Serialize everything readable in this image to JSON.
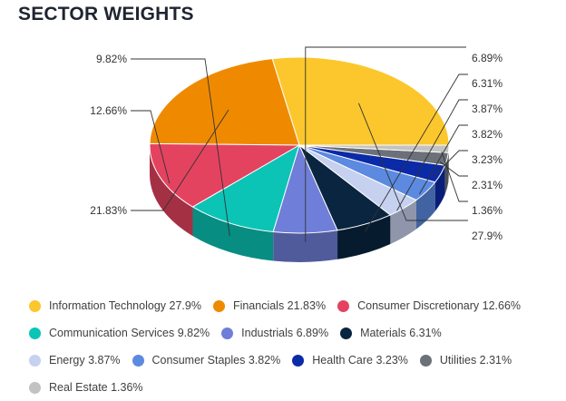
{
  "chart_data": {
    "type": "pie",
    "title": "SECTOR WEIGHTS",
    "categories": [
      "Information Technology",
      "Financials",
      "Consumer Discretionary",
      "Communication Services",
      "Industrials",
      "Materials",
      "Energy",
      "Consumer Staples",
      "Health Care",
      "Utilities",
      "Real Estate"
    ],
    "values": [
      27.9,
      21.83,
      12.66,
      9.82,
      6.89,
      6.31,
      3.87,
      3.82,
      3.23,
      2.31,
      1.36
    ],
    "value_labels": [
      "27.9%",
      "21.83%",
      "12.66%",
      "9.82%",
      "6.89%",
      "6.31%",
      "3.87%",
      "3.82%",
      "3.23%",
      "2.31%",
      "1.36%"
    ],
    "legend_labels": [
      "Information Technology 27.9%",
      "Financials 21.83%",
      "Consumer Discretionary 12.66%",
      "Communication Services 9.82%",
      "Industrials 6.89%",
      "Materials 6.31%",
      "Energy 3.87%",
      "Consumer Staples 3.82%",
      "Health Care 3.23%",
      "Utilities 2.31%",
      "Real Estate 1.36%"
    ],
    "colors": [
      "#fcc72c",
      "#ef8a00",
      "#e4435f",
      "#0bc4b5",
      "#6f7ed8",
      "#0a2540",
      "#c6d1ef",
      "#5b8ae0",
      "#0b2aa8",
      "#6b7079",
      "#c2c2c2"
    ],
    "legend_position": "bottom"
  }
}
